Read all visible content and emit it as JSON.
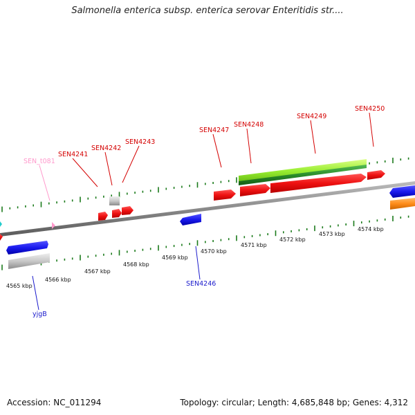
{
  "header": {
    "title": "Salmonella enterica subsp. enterica serovar Enteritidis str...."
  },
  "footer": {
    "accession": "Accession: NC_011294",
    "topology": "Topology: circular; Length: 4,685,848 bp; Genes: 4,312"
  },
  "colors": {
    "backbone": "#8c8c8c",
    "tick": "#1a7a1a",
    "forward_label": "#d40000",
    "reverse_label": "#1a1acc",
    "trna_label": "#ff99cc",
    "cds_red": "#ee1111",
    "cds_blue": "#1a1aee",
    "cds_gray": "#c8c8c8",
    "cds_green": "#99ee33",
    "cds_darkgreen": "#2a8c2a",
    "cds_orange": "#ff8c1a",
    "cds_cyan": "#22cccc"
  },
  "scale_labels": [
    "4565 kbp",
    "4566 kbp",
    "4567 kbp",
    "4568 kbp",
    "4569 kbp",
    "4570 kbp",
    "4571 kbp",
    "4572 kbp",
    "4573 kbp",
    "4574 kbp"
  ],
  "gene_labels": [
    {
      "text": "SEN_t081",
      "strand": "trna"
    },
    {
      "text": "SEN4241",
      "strand": "forward"
    },
    {
      "text": "SEN4242",
      "strand": "forward"
    },
    {
      "text": "SEN4243",
      "strand": "forward"
    },
    {
      "text": "SEN4247",
      "strand": "forward"
    },
    {
      "text": "SEN4248",
      "strand": "forward"
    },
    {
      "text": "SEN4249",
      "strand": "forward"
    },
    {
      "text": "SEN4250",
      "strand": "forward"
    },
    {
      "text": "SEN4246",
      "strand": "reverse"
    },
    {
      "text": "yjgB",
      "strand": "reverse"
    }
  ]
}
